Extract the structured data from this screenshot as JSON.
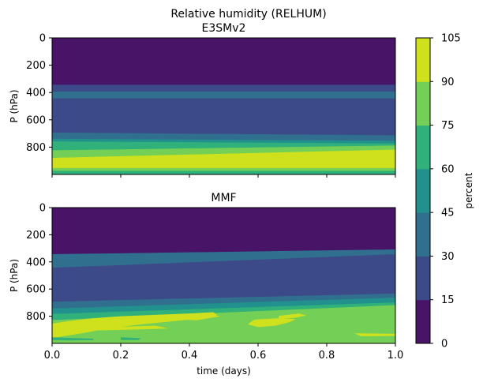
{
  "figure": {
    "suptitle": "Relative humidity (RELHUM)",
    "colorbar": {
      "label": "percent",
      "levels": [
        0,
        15,
        30,
        45,
        60,
        75,
        90,
        105
      ],
      "tick_labels": [
        "0",
        "15",
        "30",
        "45",
        "60",
        "75",
        "90",
        "105"
      ],
      "colors": [
        "#471468",
        "#3d4a89",
        "#30708e",
        "#22908c",
        "#30b07b",
        "#74cf56",
        "#cfe11c"
      ]
    }
  },
  "chart_data": [
    {
      "type": "heatmap",
      "title": "E3SMv2",
      "xlabel": "",
      "ylabel": "P (hPa)",
      "xlim": [
        0.0,
        1.0
      ],
      "ylim": [
        1000,
        0
      ],
      "x_ticks": [
        0.0,
        0.2,
        0.4,
        0.6,
        0.8,
        1.0
      ],
      "x_tick_labels": [],
      "y_ticks": [
        0,
        200,
        400,
        600,
        800
      ],
      "y_tick_labels": [
        "0",
        "200",
        "400",
        "600",
        "800"
      ],
      "bands": [
        {
          "level": "0-15",
          "p_top": [
            0,
            0
          ],
          "p_bottom": [
            345,
            345
          ]
        },
        {
          "level": "15-30",
          "p_top": [
            345,
            345
          ],
          "p_bottom": [
            395,
            395
          ]
        },
        {
          "level": "30-45",
          "p_top": [
            395,
            395
          ],
          "p_bottom": [
            445,
            445
          ]
        },
        {
          "level": "15-30",
          "p_top": [
            445,
            445
          ],
          "p_bottom": [
            695,
            715
          ]
        },
        {
          "level": "30-45",
          "p_top": [
            695,
            715
          ],
          "p_bottom": [
            740,
            755
          ]
        },
        {
          "level": "45-60",
          "p_top": [
            740,
            755
          ],
          "p_bottom": [
            760,
            775
          ]
        },
        {
          "level": "60-75",
          "p_top": [
            760,
            775
          ],
          "p_bottom": [
            825,
            790
          ]
        },
        {
          "level": "75-90",
          "p_top": [
            825,
            790
          ],
          "p_bottom": [
            880,
            820
          ]
        },
        {
          "level": "90-105",
          "p_top": [
            880,
            820
          ],
          "p_bottom": [
            955,
            955
          ]
        },
        {
          "level": "75-90",
          "p_top": [
            955,
            955
          ],
          "p_bottom": [
            975,
            975
          ]
        },
        {
          "level": "60-75",
          "p_top": [
            975,
            975
          ],
          "p_bottom": [
            1000,
            1000
          ]
        }
      ]
    },
    {
      "type": "heatmap",
      "title": "MMF",
      "xlabel": "time (days)",
      "ylabel": "P (hPa)",
      "xlim": [
        0.0,
        1.0
      ],
      "ylim": [
        1000,
        0
      ],
      "x_ticks": [
        0.0,
        0.2,
        0.4,
        0.6,
        0.8,
        1.0
      ],
      "x_tick_labels": [
        "0.0",
        "0.2",
        "0.4",
        "0.6",
        "0.8",
        "1.0"
      ],
      "y_ticks": [
        0,
        200,
        400,
        600,
        800
      ],
      "y_tick_labels": [
        "0",
        "200",
        "400",
        "600",
        "800"
      ],
      "bands": [
        {
          "level": "0-15",
          "p_top": [
            0,
            0
          ],
          "p_bottom": [
            345,
            310
          ]
        },
        {
          "level": "30-45",
          "p_top": [
            345,
            310
          ],
          "p_bottom": [
            445,
            345
          ]
        },
        {
          "level": "15-30",
          "p_top": [
            445,
            345
          ],
          "p_bottom": [
            695,
            635
          ]
        },
        {
          "level": "30-45",
          "p_top": [
            695,
            635
          ],
          "p_bottom": [
            745,
            665
          ]
        },
        {
          "level": "45-60",
          "p_top": [
            745,
            665
          ],
          "p_bottom": [
            785,
            700
          ]
        },
        {
          "level": "60-75",
          "p_top": [
            785,
            700
          ],
          "p_bottom": [
            830,
            720
          ]
        },
        {
          "level": "75-90",
          "p_top": [
            830,
            720
          ],
          "p_bottom": [
            1000,
            1000
          ]
        }
      ],
      "patches": [
        {
          "level": "90-105",
          "points": [
            [
              0.0,
              855
            ],
            [
              0.05,
              835
            ],
            [
              0.12,
              815
            ],
            [
              0.2,
              800
            ],
            [
              0.3,
              790
            ],
            [
              0.4,
              780
            ],
            [
              0.47,
              770
            ],
            [
              0.48,
              790
            ],
            [
              0.44,
              815
            ],
            [
              0.36,
              835
            ],
            [
              0.26,
              860
            ],
            [
              0.16,
              890
            ],
            [
              0.1,
              920
            ],
            [
              0.04,
              945
            ],
            [
              0.0,
              960
            ]
          ]
        },
        {
          "level": "90-105",
          "points": [
            [
              0.06,
              885
            ],
            [
              0.16,
              880
            ],
            [
              0.3,
              870
            ],
            [
              0.34,
              890
            ],
            [
              0.22,
              900
            ],
            [
              0.12,
              905
            ]
          ]
        },
        {
          "level": "90-105",
          "points": [
            [
              0.33,
              790
            ],
            [
              0.45,
              775
            ],
            [
              0.49,
              800
            ],
            [
              0.42,
              830
            ],
            [
              0.34,
              820
            ]
          ]
        },
        {
          "level": "90-105",
          "points": [
            [
              0.59,
              825
            ],
            [
              0.66,
              815
            ],
            [
              0.71,
              822
            ],
            [
              0.69,
              845
            ],
            [
              0.65,
              870
            ],
            [
              0.6,
              880
            ],
            [
              0.57,
              860
            ],
            [
              0.58,
              840
            ]
          ]
        },
        {
          "level": "90-105",
          "points": [
            [
              0.66,
              798
            ],
            [
              0.72,
              780
            ],
            [
              0.74,
              795
            ],
            [
              0.7,
              815
            ],
            [
              0.66,
              818
            ]
          ]
        },
        {
          "level": "90-105",
          "points": [
            [
              0.88,
              925
            ],
            [
              1.0,
              930
            ],
            [
              1.0,
              945
            ],
            [
              0.9,
              948
            ]
          ]
        },
        {
          "level": "60-75",
          "points": [
            [
              0.0,
              955
            ],
            [
              0.05,
              960
            ],
            [
              0.12,
              965
            ],
            [
              0.12,
              975
            ],
            [
              0.05,
              978
            ],
            [
              0.0,
              975
            ]
          ]
        },
        {
          "level": "60-75",
          "points": [
            [
              0.2,
              955
            ],
            [
              0.26,
              962
            ],
            [
              0.25,
              975
            ],
            [
              0.2,
              975
            ]
          ]
        }
      ]
    }
  ]
}
